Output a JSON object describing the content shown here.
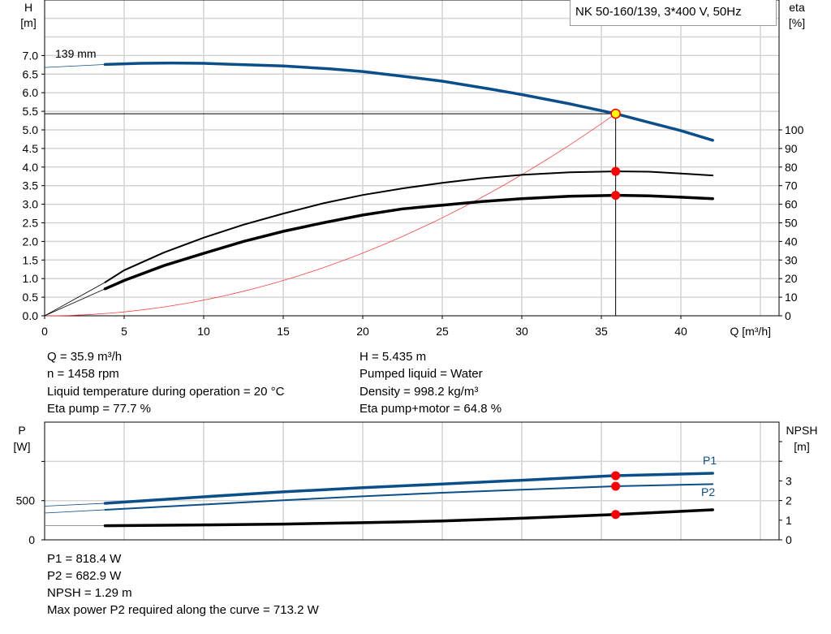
{
  "chart_data": [
    {
      "type": "line",
      "title": "NK 50-160/139, 3*400 V, 50Hz",
      "xlabel": "Q [m³/h]",
      "ylabel_left": [
        "H",
        "[m]"
      ],
      "ylabel_right": [
        "eta",
        "[%]"
      ],
      "xlim": [
        0,
        46
      ],
      "ylim_left": [
        0,
        8.5
      ],
      "ylim_right": [
        0,
        170
      ],
      "x_ticks": [
        "0",
        "5",
        "10",
        "15",
        "20",
        "25",
        "30",
        "35",
        "40"
      ],
      "y_left_ticks": [
        "0.0",
        "0.5",
        "1.0",
        "1.5",
        "2.0",
        "2.5",
        "3.0",
        "3.5",
        "4.0",
        "4.5",
        "5.0",
        "5.5",
        "6.0",
        "6.5",
        "7.0"
      ],
      "y_right_ticks": [
        "0",
        "10",
        "20",
        "30",
        "40",
        "50",
        "60",
        "70",
        "80",
        "90",
        "100"
      ],
      "grid": true,
      "annotation": "139 mm",
      "series": [
        {
          "id": "head",
          "axis": "left",
          "color": "#0b4f8a",
          "width": 3.5,
          "extrapolated": [
            [
              0,
              6.68
            ],
            [
              3.8,
              6.76
            ]
          ],
          "points": [
            [
              3.8,
              6.76
            ],
            [
              6,
              6.79
            ],
            [
              8,
              6.8
            ],
            [
              10,
              6.79
            ],
            [
              12,
              6.76
            ],
            [
              15,
              6.72
            ],
            [
              18,
              6.64
            ],
            [
              20,
              6.57
            ],
            [
              22,
              6.47
            ],
            [
              25,
              6.31
            ],
            [
              28,
              6.1
            ],
            [
              30,
              5.95
            ],
            [
              33,
              5.7
            ],
            [
              35.9,
              5.435
            ],
            [
              38,
              5.2
            ],
            [
              40,
              4.98
            ],
            [
              42,
              4.72
            ]
          ]
        },
        {
          "id": "eta-pump",
          "axis": "right",
          "color": "#000000",
          "width": 2,
          "extrapolated": [
            [
              0,
              0
            ],
            [
              3.8,
              18
            ]
          ],
          "points": [
            [
              3.8,
              18
            ],
            [
              5,
              24.5
            ],
            [
              7.5,
              34
            ],
            [
              10,
              42
            ],
            [
              12.5,
              49
            ],
            [
              15,
              55
            ],
            [
              17.5,
              60.5
            ],
            [
              20,
              65
            ],
            [
              22.5,
              68.5
            ],
            [
              25,
              71.5
            ],
            [
              27.5,
              74
            ],
            [
              30,
              75.8
            ],
            [
              33,
              77.2
            ],
            [
              35.9,
              77.7
            ],
            [
              38,
              77.5
            ],
            [
              40,
              76.5
            ],
            [
              42,
              75.5
            ]
          ]
        },
        {
          "id": "eta-pump-motor",
          "axis": "right",
          "color": "#000000",
          "width": 3.5,
          "extrapolated": [
            [
              0,
              0
            ],
            [
              3.8,
              14.5
            ]
          ],
          "points": [
            [
              3.8,
              14.5
            ],
            [
              5,
              19
            ],
            [
              7.5,
              27
            ],
            [
              10,
              33.6
            ],
            [
              12.5,
              40
            ],
            [
              15,
              45.4
            ],
            [
              17.5,
              50
            ],
            [
              20,
              54.2
            ],
            [
              22.5,
              57.5
            ],
            [
              25,
              59.5
            ],
            [
              27.5,
              61.5
            ],
            [
              30,
              63
            ],
            [
              33,
              64.3
            ],
            [
              35.9,
              64.8
            ],
            [
              38,
              64.5
            ],
            [
              40,
              63.8
            ],
            [
              42,
              63
            ]
          ]
        },
        {
          "id": "system-curve",
          "axis": "left",
          "color": "#ff4040",
          "width": 0.8,
          "type": "quadratic",
          "through": [
            35.9,
            5.435
          ]
        }
      ],
      "operating_point": {
        "Q": 35.9,
        "H": 5.435,
        "eta_pump": 77.7,
        "eta_pump_motor": 64.8
      }
    },
    {
      "type": "line",
      "ylabel_left": [
        "P",
        "[W]"
      ],
      "ylabel_right": [
        "NPSH",
        "[m]"
      ],
      "xlim": [
        0,
        46
      ],
      "ylim_left": [
        0,
        1500
      ],
      "ylim_right": [
        0,
        6
      ],
      "y_left_ticks": [
        "0",
        "500"
      ],
      "y_right_ticks": [
        "0",
        "1",
        "2",
        "3"
      ],
      "grid": true,
      "series": [
        {
          "id": "P1",
          "name": "P1",
          "axis": "left",
          "color": "#0b4f8a",
          "width": 3.5,
          "extrapolated": [
            [
              0,
              430
            ],
            [
              3.8,
              466
            ]
          ],
          "points": [
            [
              3.8,
              466
            ],
            [
              10,
              549
            ],
            [
              15,
              612
            ],
            [
              20,
              665
            ],
            [
              25,
              712
            ],
            [
              30,
              760
            ],
            [
              35.9,
              818.4
            ],
            [
              42,
              849
            ]
          ]
        },
        {
          "id": "P2",
          "name": "P2",
          "axis": "left",
          "color": "#0b4f8a",
          "width": 2,
          "extrapolated": [
            [
              0,
              342
            ],
            [
              3.8,
              383
            ]
          ],
          "points": [
            [
              3.8,
              383
            ],
            [
              10,
              450
            ],
            [
              15,
              505
            ],
            [
              20,
              555
            ],
            [
              25,
              600
            ],
            [
              30,
              640
            ],
            [
              35.9,
              682.9
            ],
            [
              42,
              710
            ]
          ]
        },
        {
          "id": "NPSH",
          "axis": "right",
          "color": "#000000",
          "width": 3.5,
          "extrapolated": [
            [
              0,
              0.72
            ],
            [
              3.8,
              0.72
            ]
          ],
          "points": [
            [
              3.8,
              0.72
            ],
            [
              10,
              0.76
            ],
            [
              15,
              0.8
            ],
            [
              20,
              0.87
            ],
            [
              25,
              0.96
            ],
            [
              30,
              1.1
            ],
            [
              35.9,
              1.29
            ],
            [
              42,
              1.53
            ]
          ]
        }
      ],
      "operating_point": {
        "Q": 35.9,
        "P1": 818.4,
        "P2": 682.9,
        "NPSH": 1.29
      }
    }
  ],
  "info_top": {
    "left": [
      "Q = 35.9 m³/h",
      "n = 1458 rpm",
      "Liquid temperature during operation = 20 °C",
      "Eta pump = 77.7 %"
    ],
    "right": [
      "H = 5.435 m",
      "Pumped liquid = Water",
      "Density = 998.2 kg/m³",
      "Eta pump+motor = 64.8 %"
    ]
  },
  "info_bottom": [
    "P1 = 818.4 W",
    "P2 = 682.9 W",
    "NPSH = 1.29 m",
    "Max power P2 required along the curve = 713.2 W"
  ],
  "colors": {
    "curve_blue": "#0b4f8a",
    "duty_point": "#ff0000",
    "duty_point_fill": "#ffff00",
    "grid": "#d4d4d4"
  }
}
